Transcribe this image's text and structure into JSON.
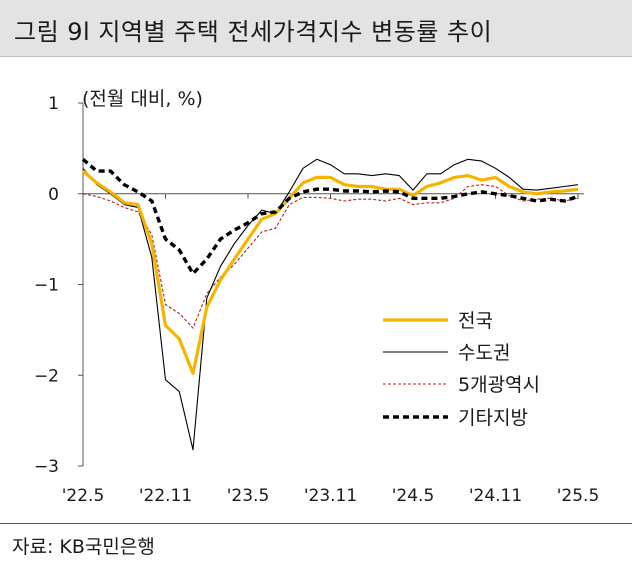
{
  "header": {
    "title": "그림 9l 지역별 주택 전세가격지수 변동률 추이"
  },
  "footer": {
    "source": "자료: KB국민은행"
  },
  "chart_data": {
    "type": "line",
    "unit_label": "(전월 대비, %)",
    "ylim": [
      -3,
      1
    ],
    "y_ticks": [
      1,
      0,
      -1,
      -2,
      -3
    ],
    "y_tick_labels": [
      "1",
      "0",
      "−1",
      "−2",
      "−3"
    ],
    "x_tick_labels": [
      "'22.5",
      "'22.11",
      "'23.5",
      "'23.11",
      "'24.5",
      "'24.11",
      "'25.5"
    ],
    "x_tick_index": [
      0,
      6,
      12,
      18,
      24,
      30,
      36
    ],
    "grid": false,
    "legend_position": "right",
    "x": [
      "'22.5",
      "'22.6",
      "'22.7",
      "'22.8",
      "'22.9",
      "'22.10",
      "'22.11",
      "'22.12",
      "'23.1",
      "'23.2",
      "'23.3",
      "'23.4",
      "'23.5",
      "'23.6",
      "'23.7",
      "'23.8",
      "'23.9",
      "'23.10",
      "'23.11",
      "'23.12",
      "'24.1",
      "'24.2",
      "'24.3",
      "'24.4",
      "'24.5",
      "'24.6",
      "'24.7",
      "'24.8",
      "'24.9",
      "'24.10",
      "'24.11",
      "'24.12",
      "'25.1",
      "'25.2",
      "'25.3",
      "'25.4",
      "'25.5"
    ],
    "series": [
      {
        "name": "전국",
        "color": "#f5b400",
        "style": "solid-thick",
        "values": [
          0.25,
          0.12,
          0.02,
          -0.1,
          -0.12,
          -0.55,
          -1.45,
          -1.6,
          -1.98,
          -1.25,
          -0.95,
          -0.72,
          -0.5,
          -0.28,
          -0.22,
          -0.05,
          0.12,
          0.18,
          0.18,
          0.1,
          0.08,
          0.08,
          0.05,
          0.05,
          -0.02,
          0.08,
          0.12,
          0.18,
          0.2,
          0.15,
          0.18,
          0.08,
          0.02,
          0.0,
          0.02,
          0.03,
          0.05
        ]
      },
      {
        "name": "수도권",
        "color": "#000000",
        "style": "solid-thin",
        "values": [
          0.28,
          0.1,
          0.0,
          -0.12,
          -0.15,
          -0.7,
          -2.05,
          -2.18,
          -2.82,
          -1.15,
          -0.8,
          -0.55,
          -0.35,
          -0.18,
          -0.22,
          0.02,
          0.28,
          0.38,
          0.32,
          0.22,
          0.22,
          0.2,
          0.22,
          0.2,
          0.04,
          0.22,
          0.22,
          0.32,
          0.38,
          0.36,
          0.28,
          0.18,
          0.05,
          0.04,
          0.06,
          0.08,
          0.1
        ]
      },
      {
        "name": "5개광역시",
        "color": "#b22222",
        "style": "dashed-thin",
        "values": [
          0.0,
          -0.03,
          -0.08,
          -0.15,
          -0.2,
          -0.45,
          -1.22,
          -1.32,
          -1.48,
          -1.1,
          -0.92,
          -0.78,
          -0.6,
          -0.42,
          -0.38,
          -0.12,
          -0.04,
          -0.04,
          -0.05,
          -0.08,
          -0.06,
          -0.06,
          -0.08,
          -0.05,
          -0.12,
          -0.1,
          -0.1,
          -0.05,
          0.08,
          0.1,
          0.08,
          -0.02,
          -0.08,
          -0.06,
          -0.05,
          -0.08,
          -0.05
        ]
      },
      {
        "name": "기타지방",
        "color": "#000000",
        "style": "dashed-thick",
        "values": [
          0.38,
          0.25,
          0.25,
          0.1,
          0.02,
          -0.08,
          -0.5,
          -0.62,
          -0.88,
          -0.72,
          -0.5,
          -0.4,
          -0.32,
          -0.22,
          -0.2,
          -0.05,
          0.02,
          0.05,
          0.05,
          0.03,
          0.03,
          0.02,
          0.03,
          0.02,
          -0.05,
          -0.05,
          -0.05,
          -0.03,
          0.0,
          0.02,
          0.0,
          -0.02,
          -0.05,
          -0.08,
          -0.06,
          -0.08,
          -0.03
        ]
      }
    ]
  }
}
